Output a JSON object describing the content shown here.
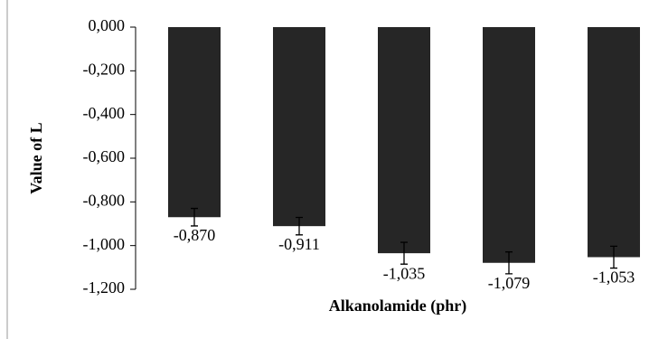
{
  "chart_data": {
    "type": "bar",
    "categories": [
      null,
      null,
      null,
      null,
      null
    ],
    "values": [
      -0.87,
      -0.911,
      -1.035,
      -1.079,
      -1.053
    ],
    "value_labels": [
      "-0,870",
      "-0,911",
      "-1,035",
      "-1,079",
      "-1,053"
    ],
    "errors": [
      0.04,
      0.04,
      0.05,
      0.05,
      0.05
    ],
    "color": "#262626",
    "ylim": [
      -1.2,
      0
    ],
    "yticks": [
      {
        "value": 0,
        "label": "0,000"
      },
      {
        "value": -0.2,
        "label": "-0,200"
      },
      {
        "value": -0.4,
        "label": "-0,400"
      },
      {
        "value": -0.6,
        "label": "-0,600"
      },
      {
        "value": -0.8,
        "label": "-0,800"
      },
      {
        "value": -1.0,
        "label": "-1,000"
      },
      {
        "value": -1.2,
        "label": "-1,200"
      }
    ],
    "y_label": "Value of L",
    "x_label": "Alkanolamide (phr)"
  }
}
